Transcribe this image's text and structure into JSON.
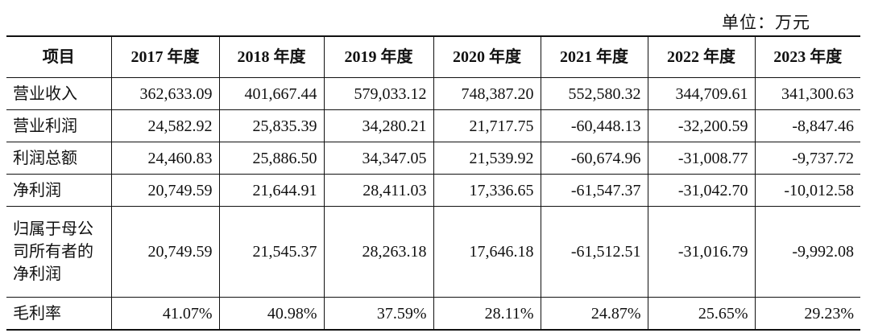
{
  "unit_label": "单位：万元",
  "table": {
    "header": [
      "项目",
      "2017 年度",
      "2018 年度",
      "2019 年度",
      "2020 年度",
      "2021 年度",
      "2022 年度",
      "2023 年度"
    ],
    "rows": [
      {
        "label": "营业收入",
        "values": [
          "362,633.09",
          "401,667.44",
          "579,033.12",
          "748,387.20",
          "552,580.32",
          "344,709.61",
          "341,300.63"
        ]
      },
      {
        "label": "营业利润",
        "values": [
          "24,582.92",
          "25,835.39",
          "34,280.21",
          "21,717.75",
          "-60,448.13",
          "-32,200.59",
          "-8,847.46"
        ]
      },
      {
        "label": "利润总额",
        "values": [
          "24,460.83",
          "25,886.50",
          "34,347.05",
          "21,539.92",
          "-60,674.96",
          "-31,008.77",
          "-9,737.72"
        ]
      },
      {
        "label": "净利润",
        "values": [
          "20,749.59",
          "21,644.91",
          "28,411.03",
          "17,336.65",
          "-61,547.37",
          "-31,042.70",
          "-10,012.58"
        ]
      },
      {
        "label": "归属于母公司所有者的净利润",
        "values": [
          "20,749.59",
          "21,545.37",
          "28,263.18",
          "17,646.18",
          "-61,512.51",
          "-31,016.79",
          "-9,992.08"
        ]
      },
      {
        "label": "毛利率",
        "values": [
          "41.07%",
          "40.98%",
          "37.59%",
          "28.11%",
          "24.87%",
          "25.65%",
          "29.23%"
        ]
      }
    ]
  }
}
